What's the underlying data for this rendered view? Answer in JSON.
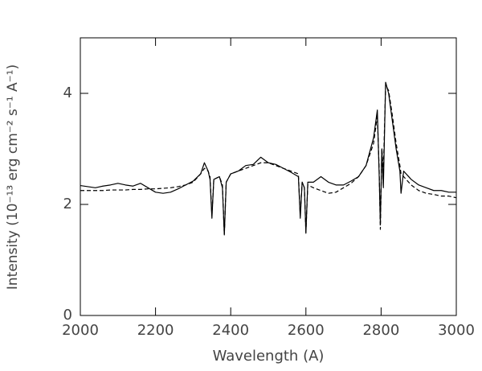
{
  "chart_data": {
    "type": "line",
    "xlabel": "Wavelength (A)",
    "ylabel": "Intensity (10⁻¹³ erg cm⁻² s⁻¹ A⁻¹)",
    "x": [
      2000,
      2020,
      2040,
      2060,
      2080,
      2100,
      2120,
      2140,
      2160,
      2180,
      2200,
      2220,
      2240,
      2260,
      2280,
      2300,
      2320,
      2330,
      2340,
      2345,
      2350,
      2355,
      2370,
      2378,
      2383,
      2388,
      2400,
      2420,
      2440,
      2460,
      2480,
      2500,
      2520,
      2540,
      2560,
      2580,
      2585,
      2590,
      2596,
      2600,
      2605,
      2620,
      2640,
      2660,
      2680,
      2700,
      2720,
      2740,
      2760,
      2780,
      2790,
      2795,
      2798,
      2802,
      2806,
      2812,
      2820,
      2830,
      2840,
      2850,
      2853,
      2860,
      2880,
      2900,
      2920,
      2940,
      2960,
      2980,
      3000
    ],
    "series": [
      {
        "color": "#000000",
        "dashed": false,
        "values": [
          2.34,
          2.32,
          2.3,
          2.33,
          2.35,
          2.38,
          2.35,
          2.33,
          2.38,
          2.3,
          2.22,
          2.2,
          2.22,
          2.28,
          2.35,
          2.42,
          2.55,
          2.75,
          2.6,
          2.45,
          1.75,
          2.45,
          2.5,
          2.3,
          1.45,
          2.4,
          2.55,
          2.6,
          2.7,
          2.72,
          2.85,
          2.75,
          2.72,
          2.65,
          2.58,
          2.5,
          1.75,
          2.4,
          2.3,
          1.48,
          2.4,
          2.4,
          2.5,
          2.4,
          2.35,
          2.35,
          2.42,
          2.5,
          2.7,
          3.2,
          3.7,
          2.5,
          1.65,
          3.0,
          2.3,
          4.2,
          4.0,
          3.5,
          3.0,
          2.6,
          2.2,
          2.6,
          2.45,
          2.35,
          2.3,
          2.25,
          2.25,
          2.22,
          2.22
        ]
      },
      {
        "color": "#000000",
        "dashed": true,
        "values": [
          2.25,
          2.25,
          2.25,
          2.25,
          2.26,
          2.26,
          2.26,
          2.27,
          2.27,
          2.28,
          2.28,
          2.29,
          2.3,
          2.32,
          2.35,
          2.4,
          2.55,
          2.65,
          2.6,
          2.5,
          1.8,
          2.45,
          2.5,
          2.35,
          1.45,
          2.4,
          2.55,
          2.6,
          2.65,
          2.7,
          2.75,
          2.75,
          2.7,
          2.65,
          2.6,
          2.55,
          1.8,
          2.4,
          2.3,
          1.5,
          2.35,
          2.3,
          2.25,
          2.2,
          2.22,
          2.3,
          2.38,
          2.5,
          2.7,
          3.1,
          3.6,
          2.6,
          1.55,
          3.0,
          2.6,
          4.15,
          4.05,
          3.6,
          3.1,
          2.7,
          2.55,
          2.5,
          2.35,
          2.25,
          2.2,
          2.18,
          2.15,
          2.15,
          2.12
        ]
      }
    ],
    "xlim": [
      2000,
      3000
    ],
    "xticks": [
      2000,
      2200,
      2400,
      2600,
      2800,
      3000
    ],
    "ylim": [
      0,
      5
    ],
    "yticks": [
      0,
      2,
      4
    ],
    "grid": false
  }
}
